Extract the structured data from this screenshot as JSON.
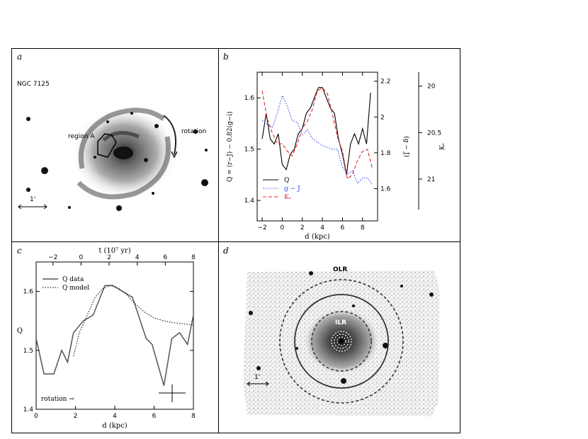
{
  "panels": {
    "a": {
      "label": "a",
      "galaxy_name": "NGC 7125",
      "region_label": "region A",
      "rotation_label": "rotation",
      "scale_label": "1'"
    },
    "b": {
      "label": "b",
      "ylabel_left": "Q = (r−J) − 0.82(g−i)",
      "ylabel_mid": "(g − J)",
      "ylabel_right": "Kₛ",
      "xlabel": "d (kpc)",
      "legend": [
        "Q",
        "g − J",
        "Kₛ"
      ]
    },
    "c": {
      "label": "c",
      "xlabel_top": "t (10⁷ yr)",
      "xlabel_bottom": "d (kpc)",
      "ylabel": "Q",
      "legend": [
        "Q data",
        "Q model"
      ],
      "rotation_label": "rotation →"
    },
    "d": {
      "label": "d",
      "olr_label": "OLR",
      "ilr_label": "ILR",
      "scale_label": "1'"
    }
  },
  "colors": {
    "q": "#000000",
    "gj": "#3344ee",
    "ks": "#ee2222"
  },
  "chart_data": [
    {
      "type": "line",
      "panel": "b",
      "xlabel": "d (kpc)",
      "ylabel": "Q = (r−J) − 0.82(g−i)",
      "xlim": [
        -2.5,
        9.5
      ],
      "xticks": [
        -2,
        0,
        2,
        4,
        6,
        8
      ],
      "ylim_left": [
        1.36,
        1.65
      ],
      "yticks_left": [
        1.4,
        1.5,
        1.6
      ],
      "ylim_mid": [
        1.42,
        2.25
      ],
      "yticks_mid": [
        1.6,
        1.8,
        2,
        2.2
      ],
      "ylim_right": [
        21.45,
        19.85
      ],
      "yticks_right": [
        20,
        20.5,
        21
      ],
      "series": [
        {
          "name": "Q",
          "axis": "left",
          "style": "solid",
          "x": [
            -2,
            -1.6,
            -1.2,
            -0.8,
            -0.4,
            0,
            0.4,
            0.8,
            1.2,
            1.6,
            2,
            2.4,
            2.8,
            3.2,
            3.6,
            4,
            4.4,
            4.8,
            5.2,
            5.6,
            6,
            6.4,
            6.8,
            7.2,
            7.6,
            8,
            8.4,
            8.8
          ],
          "y": [
            1.52,
            1.57,
            1.52,
            1.51,
            1.53,
            1.47,
            1.46,
            1.49,
            1.5,
            1.53,
            1.54,
            1.57,
            1.58,
            1.6,
            1.62,
            1.62,
            1.6,
            1.58,
            1.57,
            1.52,
            1.49,
            1.45,
            1.51,
            1.53,
            1.51,
            1.54,
            1.51,
            1.61
          ]
        },
        {
          "name": "g − J",
          "axis": "mid",
          "style": "dotted",
          "x": [
            -2,
            -1.5,
            -1,
            -0.5,
            0,
            0.5,
            1,
            1.5,
            2,
            2.5,
            3,
            3.5,
            4,
            4.5,
            5,
            5.5,
            6,
            6.5,
            7,
            7.5,
            8,
            8.5,
            9
          ],
          "y": [
            1.98,
            1.96,
            1.94,
            2.02,
            2.12,
            2.06,
            1.98,
            1.97,
            1.9,
            1.93,
            1.88,
            1.86,
            1.84,
            1.83,
            1.82,
            1.82,
            1.72,
            1.68,
            1.7,
            1.63,
            1.66,
            1.66,
            1.62
          ]
        },
        {
          "name": "Kₛ",
          "axis": "right",
          "style": "dashed",
          "x": [
            -2,
            -1.5,
            -1,
            -0.5,
            0,
            0.5,
            1,
            1.5,
            2,
            2.5,
            3,
            3.5,
            4,
            4.5,
            5,
            5.5,
            6,
            6.5,
            7,
            7.5,
            8,
            8.5,
            9
          ],
          "y": [
            20.05,
            20.35,
            20.5,
            20.62,
            20.62,
            20.7,
            20.75,
            20.62,
            20.45,
            20.38,
            20.25,
            20.05,
            20.02,
            20.08,
            20.3,
            20.55,
            20.7,
            21.0,
            20.95,
            20.8,
            20.7,
            20.68,
            20.9
          ]
        }
      ]
    },
    {
      "type": "line",
      "panel": "c",
      "xlabel": "d (kpc)",
      "xlabel_top": "t (10⁷ yr)",
      "ylabel": "Q",
      "xlim": [
        0,
        8
      ],
      "xticks": [
        0,
        2,
        4,
        6,
        8
      ],
      "xticks_top": [
        -2,
        0,
        2,
        4,
        6,
        8
      ],
      "xlim_top": [
        -3.2,
        8
      ],
      "ylim": [
        1.4,
        1.65
      ],
      "yticks": [
        1.4,
        1.5,
        1.6
      ],
      "series": [
        {
          "name": "Q data",
          "style": "solid",
          "x": [
            0,
            0.4,
            0.9,
            1.3,
            1.6,
            1.9,
            2.4,
            2.9,
            3.5,
            3.9,
            4.4,
            4.9,
            5.3,
            5.6,
            5.9,
            6.5,
            6.9,
            7.3,
            7.7,
            8
          ],
          "y": [
            1.52,
            1.46,
            1.46,
            1.5,
            1.48,
            1.53,
            1.55,
            1.56,
            1.61,
            1.61,
            1.6,
            1.59,
            1.55,
            1.52,
            1.51,
            1.44,
            1.52,
            1.53,
            1.51,
            1.56
          ]
        },
        {
          "name": "Q model",
          "style": "dotted",
          "x": [
            1.9,
            2.2,
            2.6,
            3.0,
            3.4,
            3.8,
            4.2,
            4.6,
            5.0,
            5.5,
            6.0,
            6.5,
            7.0,
            7.5,
            8.0
          ],
          "y": [
            1.49,
            1.53,
            1.56,
            1.59,
            1.605,
            1.61,
            1.605,
            1.595,
            1.58,
            1.565,
            1.555,
            1.55,
            1.547,
            1.545,
            1.543
          ]
        }
      ]
    }
  ]
}
